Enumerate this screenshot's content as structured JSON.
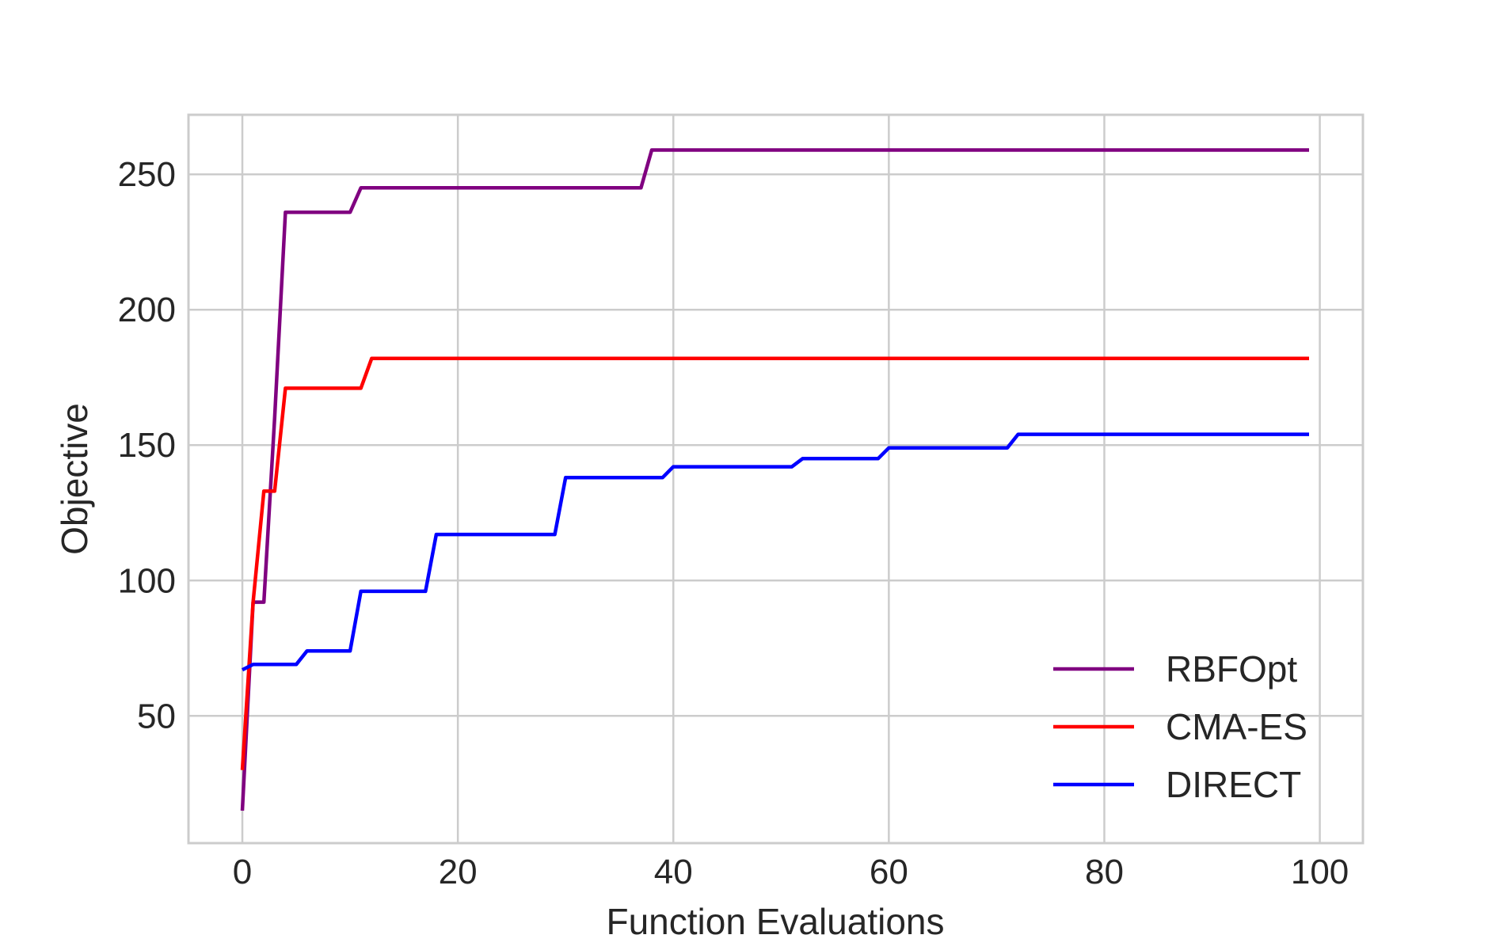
{
  "chart_data": {
    "type": "line",
    "title": "",
    "xlabel": "Function Evaluations",
    "ylabel": "Objective",
    "xlim": [
      -5,
      104
    ],
    "ylim": [
      3,
      272
    ],
    "xticks": [
      0,
      20,
      40,
      60,
      80,
      100
    ],
    "yticks": [
      50,
      100,
      150,
      200,
      250
    ],
    "xtick_labels": [
      "0",
      "20",
      "40",
      "60",
      "80",
      "100"
    ],
    "ytick_labels": [
      "50",
      "100",
      "150",
      "200",
      "250"
    ],
    "grid": true,
    "legend_position": "bottom-right",
    "series": [
      {
        "name": "RBFOpt",
        "color": "#800080",
        "x": [
          0,
          1,
          2,
          3,
          4,
          5,
          10,
          11,
          12,
          37,
          38,
          99
        ],
        "y": [
          15,
          92,
          92,
          160,
          236,
          236,
          236,
          245,
          245,
          245,
          259,
          259
        ]
      },
      {
        "name": "CMA-ES",
        "color": "#ff0000",
        "x": [
          0,
          1,
          2,
          3,
          4,
          5,
          11,
          12,
          99
        ],
        "y": [
          30,
          92,
          133,
          133,
          171,
          171,
          171,
          182,
          182
        ]
      },
      {
        "name": "DIRECT",
        "color": "#0000ff",
        "x": [
          0,
          1,
          2,
          5,
          6,
          10,
          11,
          17,
          18,
          29,
          30,
          39,
          40,
          51,
          52,
          59,
          60,
          71,
          72,
          99
        ],
        "y": [
          67,
          69,
          69,
          69,
          74,
          74,
          96,
          96,
          117,
          117,
          138,
          138,
          142,
          142,
          145,
          145,
          149,
          149,
          154,
          154
        ]
      }
    ]
  }
}
